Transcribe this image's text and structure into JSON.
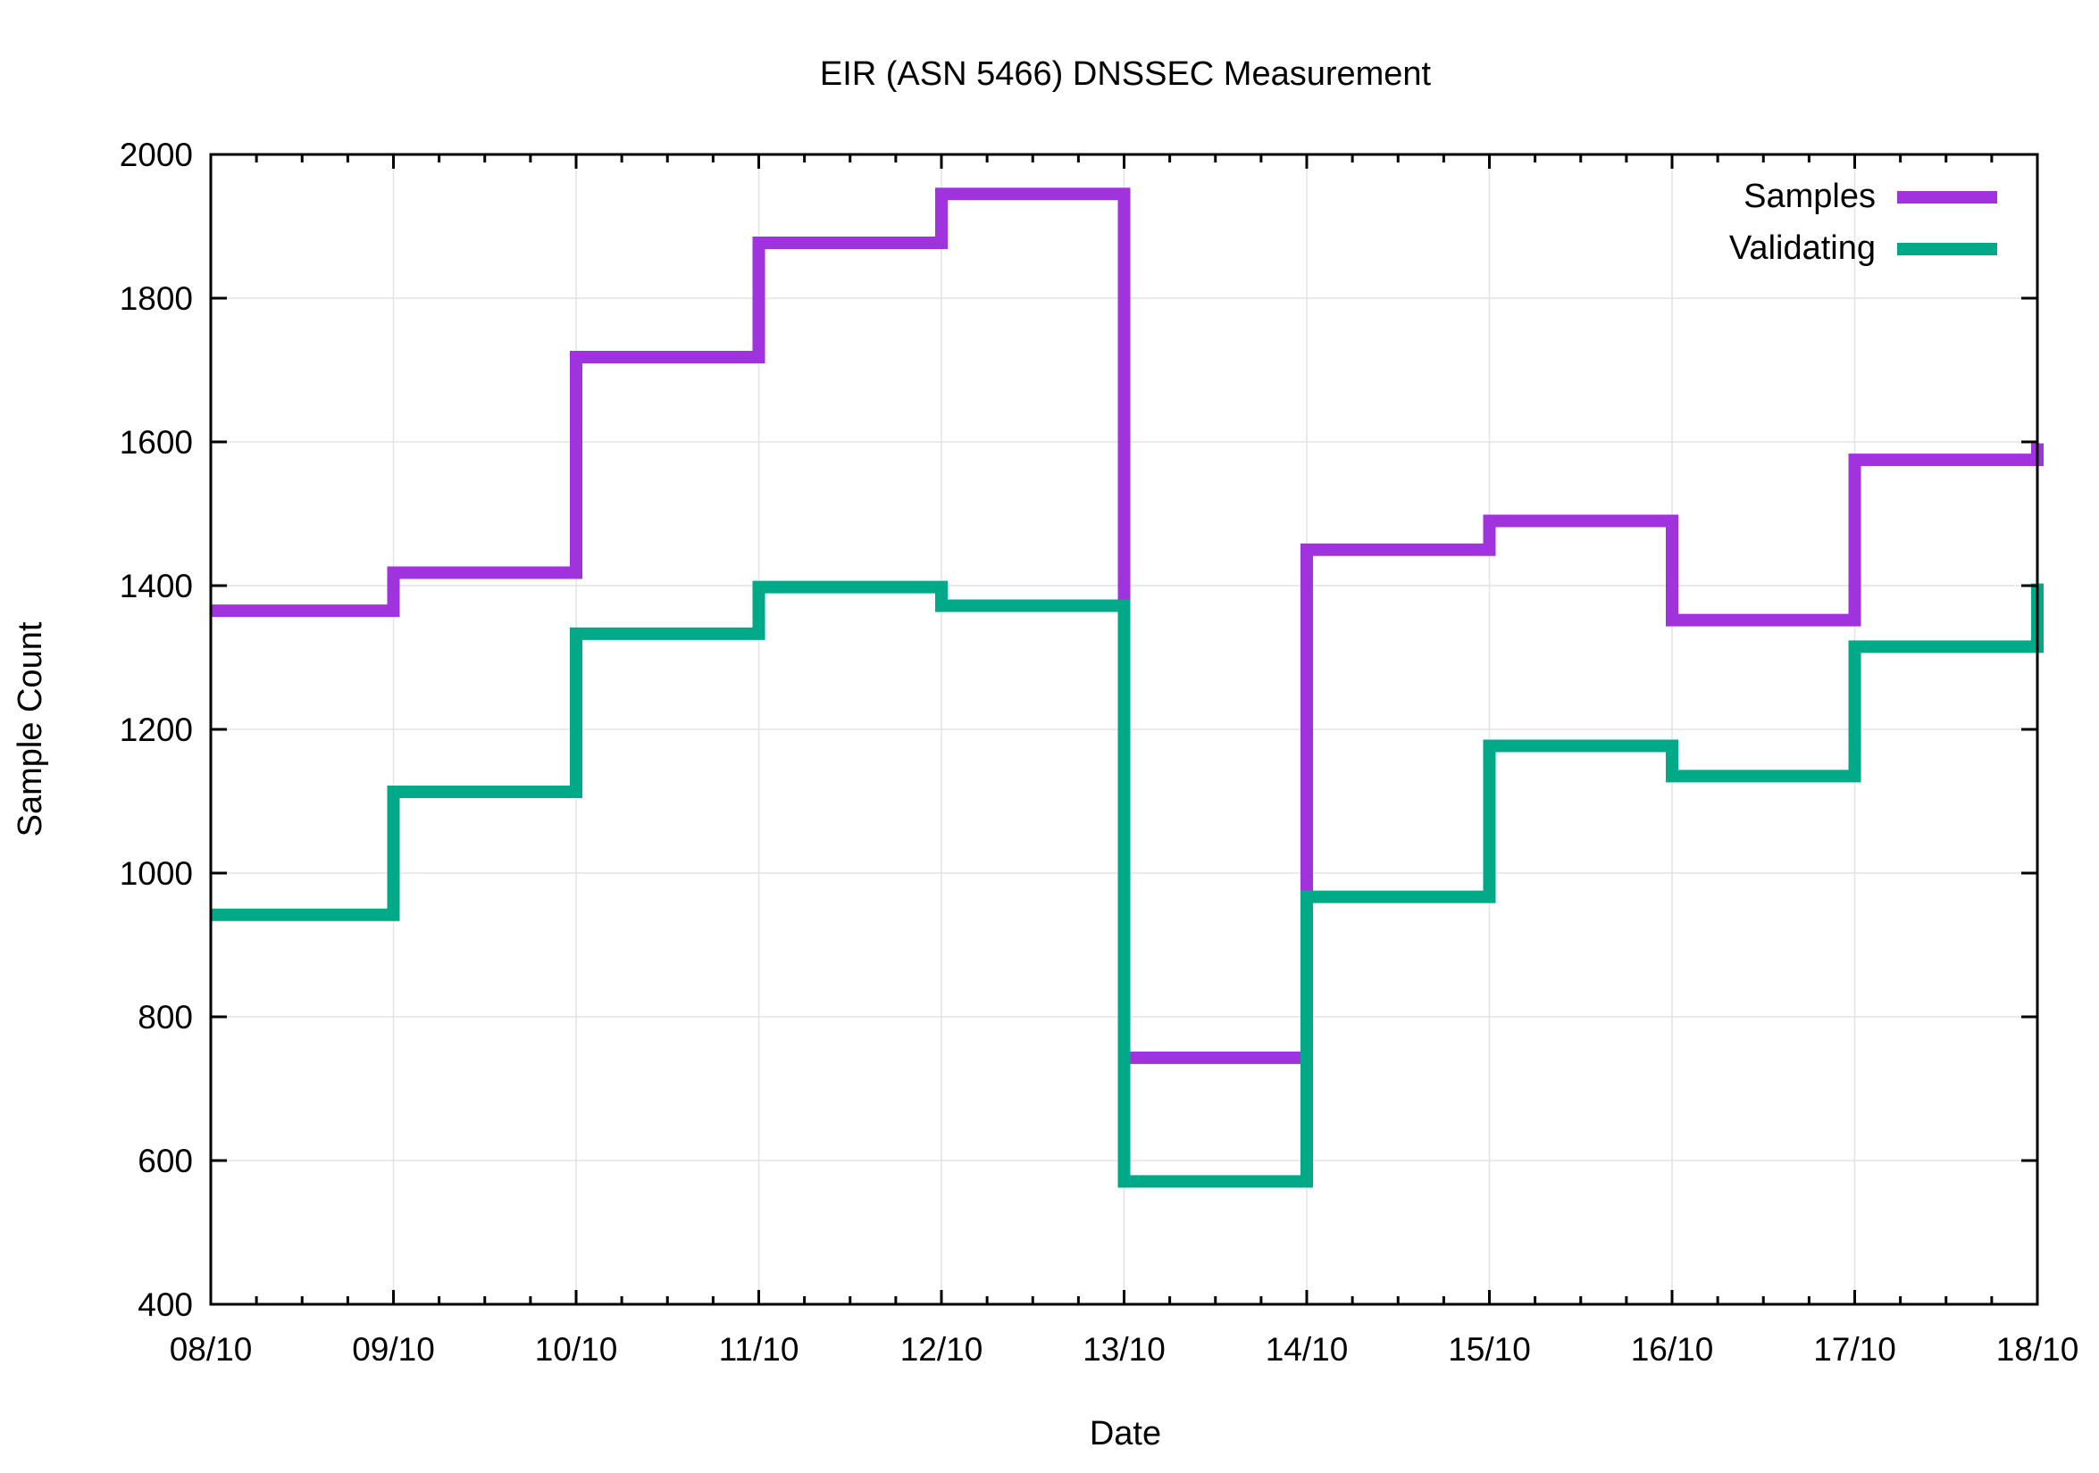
{
  "chart_data": {
    "type": "line",
    "step": true,
    "title": "EIR (ASN 5466) DNSSEC Measurement",
    "xlabel": "Date",
    "ylabel": "Sample Count",
    "categories": [
      "08/10",
      "09/10",
      "10/10",
      "11/10",
      "12/10",
      "13/10",
      "14/10",
      "15/10",
      "16/10",
      "17/10",
      "18/10"
    ],
    "ylim": [
      400,
      2000
    ],
    "yticks": [
      400,
      600,
      800,
      1000,
      1200,
      1400,
      1600,
      1800,
      2000
    ],
    "grid": true,
    "legend_position": "top-right",
    "series": [
      {
        "name": "Samples",
        "color": "#a033dd",
        "values": [
          1365,
          1418,
          1718,
          1877,
          1945,
          743,
          1450,
          1490,
          1352,
          1575,
          1598
        ]
      },
      {
        "name": "Validating",
        "color": "#00aa88",
        "values": [
          942,
          1113,
          1333,
          1398,
          1372,
          571,
          967,
          1177,
          1135,
          1315,
          1403
        ]
      }
    ]
  }
}
